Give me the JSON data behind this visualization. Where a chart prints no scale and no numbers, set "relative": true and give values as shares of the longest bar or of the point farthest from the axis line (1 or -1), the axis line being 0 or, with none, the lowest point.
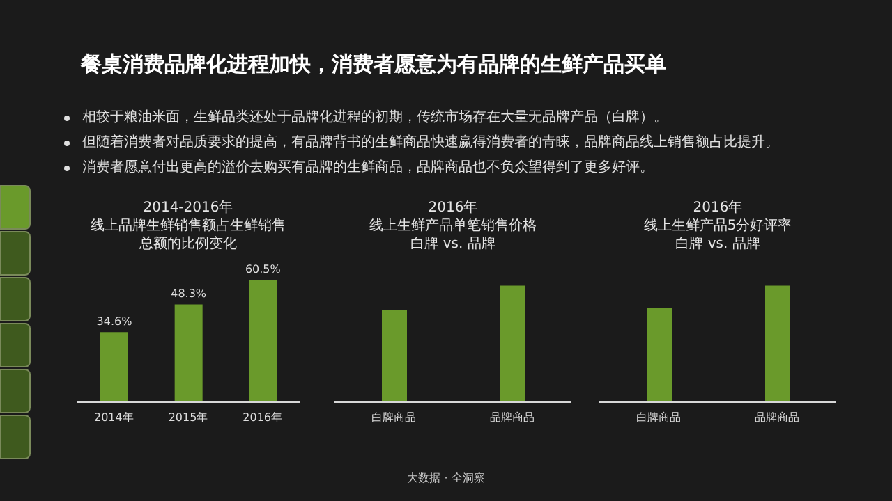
{
  "chart_data": [
    {
      "type": "bar",
      "title": "2014-2016年",
      "subtitle": "线上品牌生鲜销售额占生鲜销售总额的比例变化",
      "categories": [
        "2014年",
        "2015年",
        "2016年"
      ],
      "values": [
        34.6,
        48.3,
        60.5
      ],
      "value_labels": [
        "34.6%",
        "48.3%",
        "60.5%"
      ],
      "color": "#6a9a2b",
      "tick_labels": "x",
      "annotations": [
        "餐桌消费品牌化进程加快，消费者愿意为有品牌的生鲜产品买单",
        "相较于粮油米面，生鲜品类还处于品牌化进程的初期，传统市场存在大量无品牌产品（白牌）。",
        "但随着消费者对品质要求的提高，有品牌背书的生鲜商品快速赢得消费者的青睐，品牌商品线上销售额占比提升。",
        "消费者愿意付出更高的溢价去购买有品牌的生鲜商品，品牌商品也不负众望得到了更多好评。",
        "大数据 · 全洞察"
      ]
    },
    {
      "type": "bar",
      "title": "2016年",
      "subtitle": "线上生鲜产品单笔销售价格",
      "annotations": [
        "白牌 vs. 品牌"
      ],
      "categories": [
        "白牌商品",
        "品牌商品"
      ],
      "values": [
        0.79,
        1
      ],
      "color": "#6a9a2b",
      "relative": true
    },
    {
      "type": "bar",
      "title": "2016年",
      "subtitle": "线上生鲜产品5分好评率",
      "annotations": [
        "白牌 vs. 品牌"
      ],
      "categories": [
        "白牌商品",
        "品牌商品"
      ],
      "values": [
        0.81,
        1
      ],
      "color": "#6a9a2b",
      "relative": true
    }
  ]
}
